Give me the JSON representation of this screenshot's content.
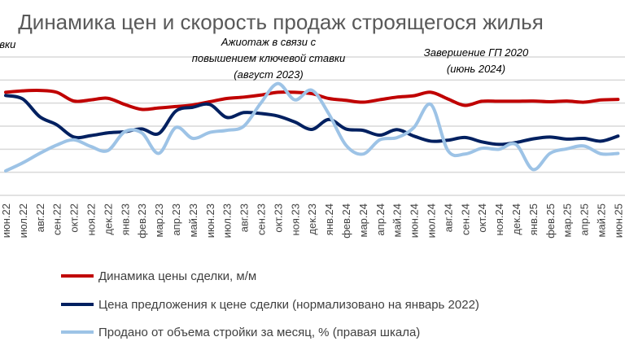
{
  "chart_data": {
    "type": "line",
    "title": "Динамика цен и скорость продаж строящегося жилья",
    "categories": [
      "июн.22",
      "июл.22",
      "авг.22",
      "сен.22",
      "окт.22",
      "ноя.22",
      "дек.22",
      "янв.23",
      "фев.23",
      "мар.23",
      "апр.23",
      "май.23",
      "июн.23",
      "июл.23",
      "авг.23",
      "сен.23",
      "окт.23",
      "ноя.23",
      "дек.23",
      "янв.24",
      "фев.24",
      "мар.24",
      "апр.24",
      "май.24",
      "июн.24",
      "июл.24",
      "авг.24",
      "сен.24",
      "окт.24",
      "ноя.24",
      "дек.24",
      "янв.25",
      "фев.25",
      "мар.25",
      "апр.25",
      "май.25",
      "июн.25"
    ],
    "y_note_visible_scale": false,
    "grid": true,
    "legend_position": "bottom",
    "series": [
      {
        "name": "Динамика цены сделки, м/м",
        "color": "#C00000",
        "values": [
          4.47,
          4.53,
          4.55,
          4.47,
          4.09,
          4.14,
          4.21,
          3.94,
          3.73,
          3.79,
          3.85,
          3.92,
          4.06,
          4.2,
          4.26,
          4.35,
          4.47,
          4.47,
          4.41,
          4.2,
          4.12,
          4.04,
          4.15,
          4.26,
          4.32,
          4.47,
          4.18,
          3.9,
          4.08,
          4.08,
          4.08,
          4.09,
          4.06,
          4.09,
          4.04,
          4.14,
          4.16
        ]
      },
      {
        "name": "Цена предложения к цене сделки (нормализовано на январь 2022)",
        "color": "#002060",
        "values": [
          4.33,
          4.18,
          3.41,
          3.06,
          2.53,
          2.59,
          2.71,
          2.76,
          2.88,
          2.68,
          3.65,
          3.82,
          3.94,
          3.38,
          3.59,
          3.55,
          3.44,
          3.18,
          2.86,
          3.29,
          2.88,
          2.82,
          2.61,
          2.85,
          2.57,
          2.35,
          2.39,
          2.51,
          2.32,
          2.21,
          2.29,
          2.45,
          2.53,
          2.44,
          2.47,
          2.35,
          2.57
        ]
      },
      {
        "name": "Продано от объема стройки за месяц, % (правая шкала)",
        "color": "#9DC3E6",
        "values": [
          1.06,
          1.41,
          1.82,
          2.18,
          2.41,
          2.12,
          1.94,
          2.76,
          2.71,
          1.82,
          2.94,
          2.47,
          2.73,
          2.82,
          3.0,
          4.0,
          4.85,
          4.14,
          4.56,
          3.53,
          2.18,
          1.79,
          2.41,
          2.5,
          2.94,
          3.94,
          1.94,
          1.79,
          2.04,
          2.0,
          2.21,
          1.12,
          1.82,
          2.02,
          2.14,
          1.8,
          1.82
        ]
      }
    ],
    "annotations": {
      "left_cut": "авки",
      "hype_line1": "Ажиотаж в связи с",
      "hype_line2": "повышением ключевой ставки",
      "hype_line3": "(август 2023)",
      "gp_line1": "Завершение ГП 2020",
      "gp_line2": "(июнь 2024)"
    }
  }
}
